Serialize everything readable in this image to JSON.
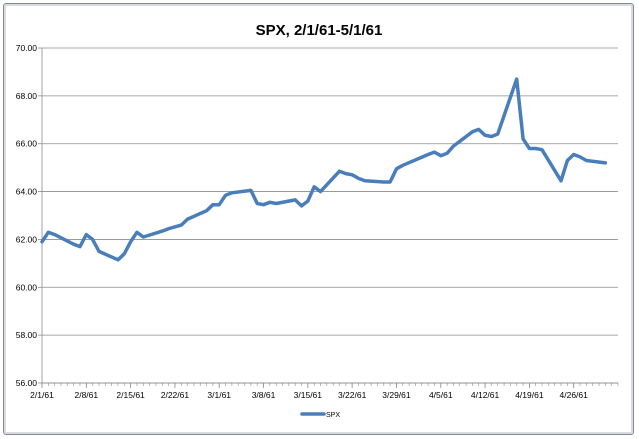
{
  "chart_data": {
    "type": "line",
    "title": "SPX, 2/1/61-5/1/61",
    "xlabel": "",
    "ylabel": "",
    "ylim": [
      56.0,
      70.0
    ],
    "yticks": [
      "56.00",
      "58.00",
      "60.00",
      "62.00",
      "64.00",
      "66.00",
      "68.00",
      "70.00"
    ],
    "xticks": [
      "2/1/61",
      "2/8/61",
      "2/15/61",
      "2/22/61",
      "3/1/61",
      "3/8/61",
      "3/15/61",
      "3/22/61",
      "3/29/61",
      "4/5/61",
      "4/12/61",
      "4/19/61",
      "4/26/61"
    ],
    "grid": "horizontal",
    "legend": "bottom-center",
    "line_color": "#4a7ebb",
    "series": [
      {
        "name": "SPX",
        "x": [
          "1961-02-01",
          "1961-02-02",
          "1961-02-03",
          "1961-02-06",
          "1961-02-07",
          "1961-02-08",
          "1961-02-09",
          "1961-02-10",
          "1961-02-13",
          "1961-02-14",
          "1961-02-15",
          "1961-02-16",
          "1961-02-17",
          "1961-02-20",
          "1961-02-21",
          "1961-02-23",
          "1961-02-24",
          "1961-02-27",
          "1961-02-28",
          "1961-03-01",
          "1961-03-02",
          "1961-03-03",
          "1961-03-06",
          "1961-03-07",
          "1961-03-08",
          "1961-03-09",
          "1961-03-10",
          "1961-03-13",
          "1961-03-14",
          "1961-03-15",
          "1961-03-16",
          "1961-03-17",
          "1961-03-20",
          "1961-03-21",
          "1961-03-22",
          "1961-03-23",
          "1961-03-24",
          "1961-03-27",
          "1961-03-28",
          "1961-03-29",
          "1961-03-30",
          "1961-04-03",
          "1961-04-04",
          "1961-04-05",
          "1961-04-06",
          "1961-04-07",
          "1961-04-10",
          "1961-04-11",
          "1961-04-12",
          "1961-04-13",
          "1961-04-14",
          "1961-04-17",
          "1961-04-18",
          "1961-04-19",
          "1961-04-20",
          "1961-04-21",
          "1961-04-24",
          "1961-04-25",
          "1961-04-26",
          "1961-04-27",
          "1961-04-28",
          "1961-05-01"
        ],
        "values": [
          61.9,
          62.3,
          62.2,
          61.8,
          61.7,
          62.2,
          62.0,
          61.5,
          61.15,
          61.4,
          61.9,
          62.3,
          62.1,
          62.35,
          62.45,
          62.6,
          62.85,
          63.2,
          63.45,
          63.45,
          63.85,
          63.95,
          64.05,
          63.5,
          63.45,
          63.55,
          63.5,
          63.65,
          63.4,
          63.6,
          64.2,
          64.0,
          64.85,
          64.75,
          64.7,
          64.55,
          64.45,
          64.4,
          64.4,
          64.95,
          65.1,
          65.55,
          65.65,
          65.5,
          65.6,
          65.9,
          66.5,
          66.6,
          66.35,
          66.3,
          66.4,
          68.7,
          66.2,
          65.8,
          65.8,
          65.75,
          64.45,
          65.3,
          65.55,
          65.45,
          65.3,
          65.2
        ]
      }
    ]
  }
}
